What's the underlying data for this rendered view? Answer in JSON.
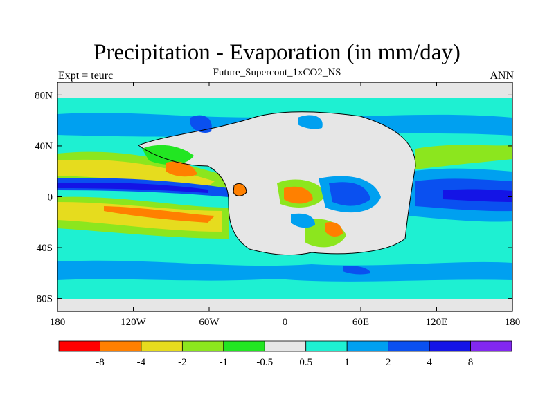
{
  "title": "Precipitation - Evaporation (in mm/day)",
  "subtitle": "Future_Supercont_1xCO2_NS",
  "left_label": "Expt = teurc",
  "right_label": "ANN",
  "map": {
    "lat_ticks": [
      {
        "label": "80N",
        "lat": 80
      },
      {
        "label": "40N",
        "lat": 40
      },
      {
        "label": "0",
        "lat": 0
      },
      {
        "label": "40S",
        "lat": -40
      },
      {
        "label": "80S",
        "lat": -80
      }
    ],
    "lon_ticks": [
      {
        "label": "180",
        "lon": -180
      },
      {
        "label": "120W",
        "lon": -120
      },
      {
        "label": "60W",
        "lon": -60
      },
      {
        "label": "0",
        "lon": 0
      },
      {
        "label": "60E",
        "lon": 60
      },
      {
        "label": "120E",
        "lon": 120
      },
      {
        "label": "180",
        "lon": 180
      }
    ],
    "lon_range": [
      -180,
      180
    ],
    "lat_range": [
      -90,
      90
    ],
    "projection": "cylindrical-equidistant"
  },
  "colorbar": {
    "colors": [
      "#ff0000",
      "#ff8000",
      "#e6dc1e",
      "#8ce61e",
      "#22e622",
      "#e6e6e6",
      "#1ef0d2",
      "#00a0f0",
      "#0a50f0",
      "#1414e6",
      "#8228f0"
    ],
    "labels": [
      "-8",
      "-4",
      "-2",
      "-1",
      "-0.5",
      "0.5",
      "1",
      "2",
      "4",
      "8"
    ]
  }
}
